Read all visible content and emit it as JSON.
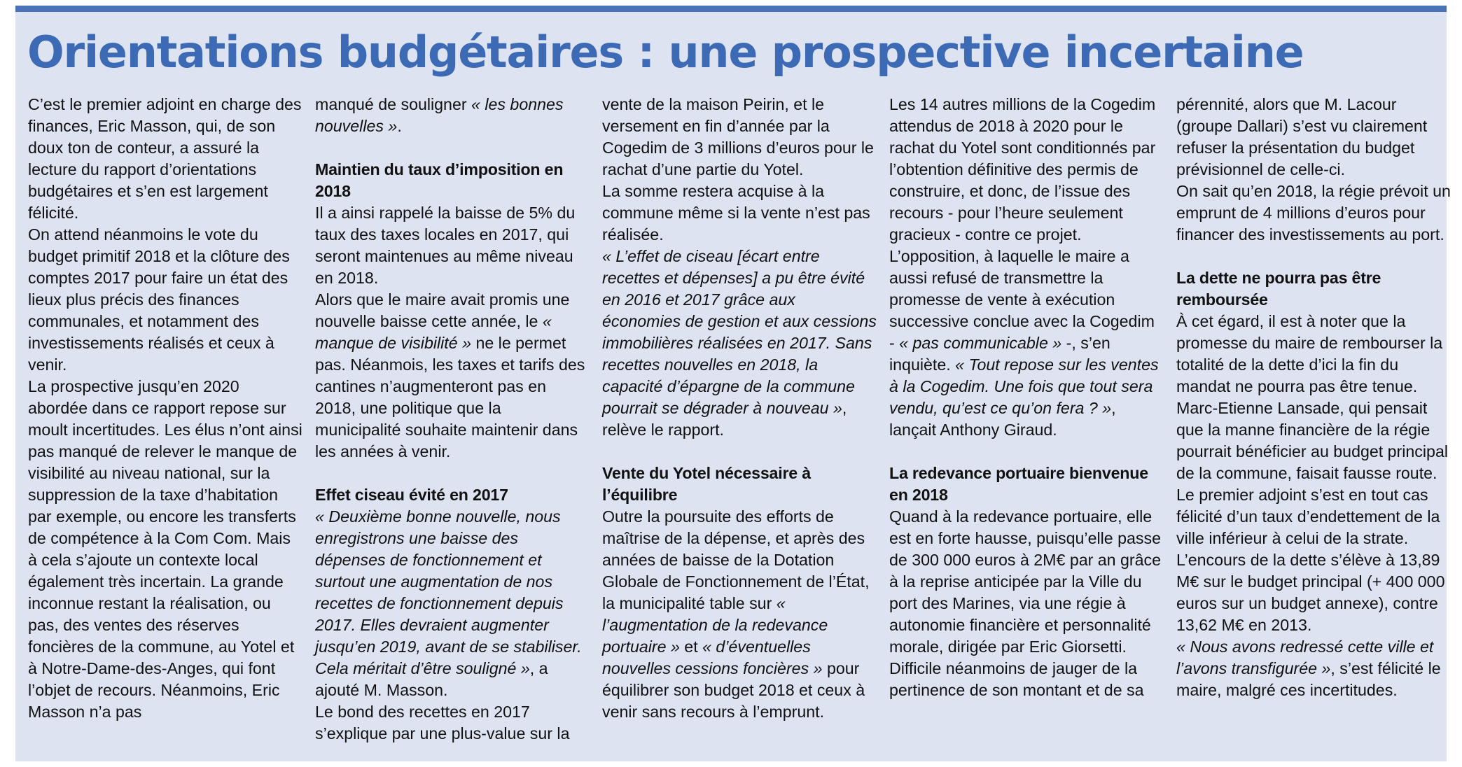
{
  "title": "Orientations budgétaires : une prospective incertaine",
  "columns": [
    {
      "paragraphs": [
        [
          {
            "t": "C’est le premier adjoint en charge des finances, Eric Masson, qui, de son doux ton de conteur, a assuré la lecture du rapport d’orientations budgétaires et s’en est largement félicité."
          }
        ],
        [
          {
            "t": "On attend néanmoins le vote du budget primitif 2018 et la clôture des comptes 2017 pour faire un état des lieux plus précis des finances communales, et notamment des investissements réalisés et ceux à venir."
          }
        ],
        [
          {
            "t": "La prospective jusqu’en 2020 abordée dans ce rapport repose sur moult incertitudes. Les élus n’ont ainsi pas manqué de relever le manque de visibilité au niveau national, sur la suppression de la taxe d’habitation par exemple, ou encore les transferts de compétence à la Com Com. Mais à cela s’ajoute un contexte local également très incertain. La grande inconnue restant la réalisation, ou pas, des ventes des réserves foncières de la commune, au Yotel et à Notre-Dame-des-Anges, qui font l’objet de recours. Néanmoins, Eric Masson n’a pas"
          }
        ]
      ]
    },
    {
      "paragraphs": [
        [
          {
            "t": "manqué de souligner "
          },
          {
            "t": "« les bonnes nouvelles »",
            "i": true
          },
          {
            "t": "."
          }
        ],
        {
          "heading": "Maintien du taux d’imposition en 2018"
        },
        [
          {
            "t": "Il a ainsi rappelé la baisse de 5% du taux des taxes locales en 2017, qui seront maintenues au même niveau en 2018."
          }
        ],
        [
          {
            "t": "Alors que le maire avait promis une nouvelle baisse cette année, le "
          },
          {
            "t": "« manque de visibilité »",
            "i": true
          },
          {
            "t": " ne le permet pas. Néanmois, les taxes et tarifs des cantines n’augmenteront pas en 2018, une politique que la municipalité souhaite maintenir dans les années à venir."
          }
        ],
        {
          "heading": "Effet ciseau évité en 2017"
        },
        [
          {
            "t": "« Deuxième bonne nouvelle, nous enregistrons une baisse des dépenses de fonctionnement et surtout une augmentation de nos recettes de fonctionnement depuis 2017. Elles devraient augmenter jusqu’en 2019, avant de se stabiliser. Cela méritait d’être souligné »",
            "i": true
          },
          {
            "t": ", a ajouté M. Masson."
          }
        ],
        [
          {
            "t": "Le bond des recettes en 2017 s’explique par une plus-value sur la"
          }
        ]
      ]
    },
    {
      "paragraphs": [
        [
          {
            "t": "vente de la maison Peirin, et le versement en fin d’année par la Cogedim de 3 millions d’euros pour le rachat d’une partie du Yotel."
          }
        ],
        [
          {
            "t": "La somme restera acquise à la commune même si la vente n’est pas réalisée."
          }
        ],
        [
          {
            "t": "« L’effet de ciseau [écart entre recettes et dépenses] a pu être évité en 2016 et 2017 grâce aux économies de gestion et aux cessions immobilières réalisées en 2017. Sans recettes nouvelles en 2018, la capacité d’épargne de la commune pourrait se dégrader à nouveau »",
            "i": true
          },
          {
            "t": ", relève le rapport."
          }
        ],
        {
          "heading": "Vente du Yotel nécessaire à l’équilibre"
        },
        [
          {
            "t": "Outre la poursuite des efforts de maîtrise de la dépense, et après des années de baisse de la Dotation Globale de Fonctionnement de l’État, la municipalité table sur "
          },
          {
            "t": "« l’augmentation de la redevance portuaire »",
            "i": true
          },
          {
            "t": " et "
          },
          {
            "t": "« d’éventuelles nouvelles cessions foncières »",
            "i": true
          },
          {
            "t": " pour équilibrer son budget 2018 et ceux à venir sans recours à l’emprunt."
          }
        ]
      ]
    },
    {
      "paragraphs": [
        [
          {
            "t": "Les 14 autres millions de la Cogedim attendus de 2018 à 2020 pour le rachat du Yotel sont conditionnés par l’obtention définitive des permis de construire, et donc, de l’issue des recours - pour l’heure seulement gracieux - contre ce projet."
          }
        ],
        [
          {
            "t": "L’opposition, à laquelle le maire a aussi refusé de transmettre la promesse de vente à exécution successive conclue avec la Cogedim - "
          },
          {
            "t": "« pas communicable »",
            "i": true
          },
          {
            "t": " -, s’en inquiète. "
          },
          {
            "t": "« Tout repose sur les ventes à la Cogedim. Une fois que tout sera vendu, qu’est ce qu’on fera ? »",
            "i": true
          },
          {
            "t": ", lançait Anthony Giraud."
          }
        ],
        {
          "heading": "La redevance portuaire bienvenue en 2018"
        },
        [
          {
            "t": "Quand à la redevance portuaire, elle est en forte hausse, puisqu’elle passe de 300 000 euros à 2M€ par an grâce à la reprise anticipée par la Ville du port des Marines, via une régie à autonomie financière et personnalité morale, dirigée par Eric Giorsetti."
          }
        ],
        [
          {
            "t": "Difficile néanmoins de jauger de la pertinence de son montant et de sa"
          }
        ]
      ]
    },
    {
      "paragraphs": [
        [
          {
            "t": "pérennité, alors que M. Lacour (groupe Dallari) s’est vu clairement refuser la présentation du budget prévisionnel de celle-ci."
          }
        ],
        [
          {
            "t": "On sait qu’en 2018, la régie prévoit un emprunt de 4 millions d’euros pour financer des investissements au port."
          }
        ],
        {
          "heading": "La dette ne pourra pas être remboursée"
        },
        [
          {
            "t": "À cet égard, il est à noter que la promesse du maire de rembourser la totalité de la dette d’ici la fin du mandat ne pourra pas être tenue. Marc-Etienne Lansade, qui pensait que la manne financière de la régie pourrait bénéficier au budget principal de la commune, faisait fausse route."
          }
        ],
        [
          {
            "t": "Le premier adjoint s’est en tout cas félicité d’un taux d’endettement de la ville inférieur à celui de la strate. L’encours de la dette s’élève à 13,89 M€ sur le budget principal (+ 400 000 euros sur un budget annexe), contre 13,62 M€ en 2013."
          }
        ],
        [
          {
            "t": "« Nous avons redressé cette ville et l’avons transfigurée »",
            "i": true
          },
          {
            "t": ", s’est félicité le maire, malgré ces incertitudes."
          }
        ]
      ]
    }
  ]
}
